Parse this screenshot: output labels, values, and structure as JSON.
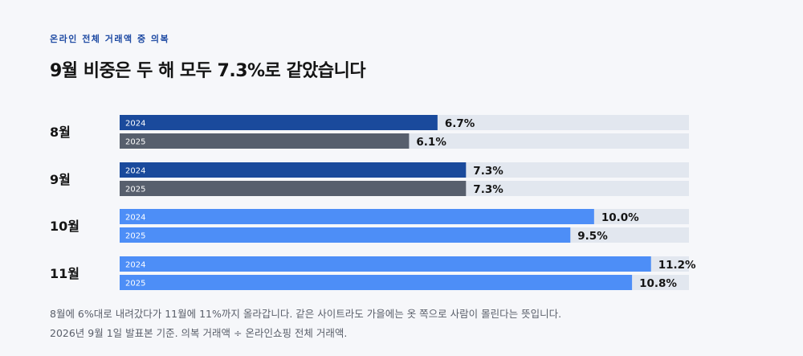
{
  "header": {
    "kicker": "온라인 전체 거래액 중 의복",
    "title": "9월 비중은 두 해 모두 7.3%로 같았습니다"
  },
  "footer": {
    "note": "8월에 6%대로 내려갔다가 11월에 11%까지 올라갑니다. 같은 사이트라도 가을에는 옷 쪽으로 사람이 몰린다는 뜻입니다.",
    "source": "2026년 9월 1일 발표본 기준. 의복 거래액 ÷ 온라인쇼핑 전체 거래액."
  },
  "chart_data": {
    "type": "bar",
    "orientation": "horizontal",
    "categories": [
      "8월",
      "9월",
      "10월",
      "11월"
    ],
    "series": [
      {
        "name": "2024",
        "values": [
          6.7,
          7.3,
          10.0,
          11.2
        ]
      },
      {
        "name": "2025",
        "values": [
          6.1,
          7.3,
          9.5,
          10.8
        ]
      }
    ],
    "value_suffix": "%",
    "xlim": [
      0,
      12
    ],
    "colors": {
      "track": "#e2e7ef",
      "early_2024": "#1a4a9c",
      "early_2025": "#575f6d",
      "late": "#4d8ef7"
    },
    "highlight_categories": [
      "10월",
      "11월"
    ]
  }
}
